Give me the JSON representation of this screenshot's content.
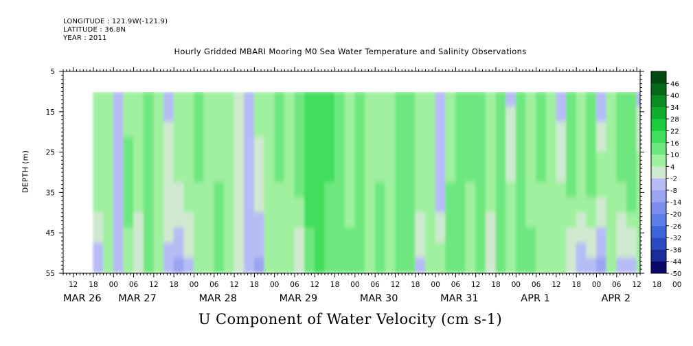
{
  "header": {
    "longitude": "LONGITUDE : 121.9W(-121.9)",
    "latitude": "LATITUDE : 36.8N",
    "year": "YEAR : 2011"
  },
  "chart_data": {
    "type": "heatmap",
    "title": "Hourly Gridded MBARI Mooring M0 Sea Water Temperature and Salinity Observations",
    "xlabel": "U Component of Water Velocity (cm s-1)",
    "ylabel": "DEPTH (m)",
    "x_start": "MAR 26 09:00",
    "x_end": "APR 2 13:00",
    "data_start": "MAR 26 18:00",
    "data_end": "APR 2 12:00",
    "ylim": [
      5,
      55
    ],
    "y_inverted": true,
    "data_depth_range": [
      10,
      55
    ],
    "y_ticks": [
      5,
      15,
      25,
      35,
      45,
      55
    ],
    "y_tick_labels": [
      "5",
      "15",
      "25",
      "35",
      "45",
      "55"
    ],
    "x_hour_labels": [
      "12",
      "18",
      "00",
      "06",
      "12",
      "18",
      "00",
      "06",
      "12",
      "18",
      "00",
      "06",
      "12",
      "18",
      "00",
      "06",
      "12",
      "18",
      "00",
      "06",
      "12",
      "18",
      "00",
      "06",
      "12",
      "18",
      "00",
      "06",
      "12",
      "18",
      "00",
      "06"
    ],
    "x_day_labels": [
      "MAR 26",
      "MAR 27",
      "MAR 28",
      "MAR 29",
      "MAR 30",
      "MAR 31",
      "APR  1",
      "APR  2"
    ],
    "colorbar": {
      "levels": [
        -50,
        -44,
        -38,
        -32,
        -26,
        -20,
        -14,
        -8,
        -2,
        4,
        10,
        16,
        22,
        28,
        34,
        40,
        46
      ],
      "colors": [
        "#080868",
        "#1a2c98",
        "#2a4cc0",
        "#3c66d8",
        "#5a7ee6",
        "#7c8eec",
        "#9aa4f0",
        "#b6bcf4",
        "#cfe9cf",
        "#9ff09f",
        "#6ee87e",
        "#3fde5c",
        "#1ccc3c",
        "#0fae2c",
        "#0a8c22",
        "#066a18",
        "#034a10"
      ]
    },
    "u_velocity_columns": [
      {
        "time": "MAR 26 18:00",
        "shallow": 8,
        "mid": 8,
        "deep": -6
      },
      {
        "time": "MAR 26 21:00",
        "shallow": 10,
        "mid": 8,
        "deep": 4
      },
      {
        "time": "MAR 27 00:00",
        "shallow": -4,
        "mid": -6,
        "deep": -8
      },
      {
        "time": "MAR 27 03:00",
        "shallow": 8,
        "mid": 12,
        "deep": 8
      },
      {
        "time": "MAR 27 06:00",
        "shallow": 10,
        "mid": 8,
        "deep": -2
      },
      {
        "time": "MAR 27 09:00",
        "shallow": 10,
        "mid": 12,
        "deep": 14
      },
      {
        "time": "MAR 27 12:00",
        "shallow": 8,
        "mid": 10,
        "deep": 4
      },
      {
        "time": "MAR 27 15:00",
        "shallow": -4,
        "mid": 2,
        "deep": -4
      },
      {
        "time": "MAR 27 18:00",
        "shallow": 8,
        "mid": 4,
        "deep": -10
      },
      {
        "time": "MAR 27 21:00",
        "shallow": 6,
        "mid": 8,
        "deep": -4
      },
      {
        "time": "MAR 28 00:00",
        "shallow": 12,
        "mid": 10,
        "deep": 4
      },
      {
        "time": "MAR 28 03:00",
        "shallow": 6,
        "mid": 8,
        "deep": 10
      },
      {
        "time": "MAR 28 06:00",
        "shallow": 8,
        "mid": 10,
        "deep": 12
      },
      {
        "time": "MAR 28 09:00",
        "shallow": 10,
        "mid": 8,
        "deep": 4
      },
      {
        "time": "MAR 28 12:00",
        "shallow": -2,
        "mid": 4,
        "deep": 2
      },
      {
        "time": "MAR 28 15:00",
        "shallow": -6,
        "mid": -4,
        "deep": -6
      },
      {
        "time": "MAR 28 18:00",
        "shallow": 6,
        "mid": 2,
        "deep": -10
      },
      {
        "time": "MAR 28 21:00",
        "shallow": 10,
        "mid": 8,
        "deep": 4
      },
      {
        "time": "MAR 29 00:00",
        "shallow": 12,
        "mid": 10,
        "deep": 8
      },
      {
        "time": "MAR 29 03:00",
        "shallow": 8,
        "mid": 10,
        "deep": 4
      },
      {
        "time": "MAR 29 06:00",
        "shallow": 14,
        "mid": 12,
        "deep": -2
      },
      {
        "time": "MAR 29 09:00",
        "shallow": 16,
        "mid": 18,
        "deep": 14
      },
      {
        "time": "MAR 29 12:00",
        "shallow": 16,
        "mid": 20,
        "deep": 16
      },
      {
        "time": "MAR 29 15:00",
        "shallow": 20,
        "mid": 16,
        "deep": 12
      },
      {
        "time": "MAR 29 18:00",
        "shallow": 16,
        "mid": 14,
        "deep": 10
      },
      {
        "time": "MAR 29 21:00",
        "shallow": 10,
        "mid": 8,
        "deep": 12
      },
      {
        "time": "MAR 30 00:00",
        "shallow": 12,
        "mid": 10,
        "deep": 14
      },
      {
        "time": "MAR 30 03:00",
        "shallow": 10,
        "mid": 6,
        "deep": 8
      },
      {
        "time": "MAR 30 06:00",
        "shallow": 8,
        "mid": 10,
        "deep": 12
      },
      {
        "time": "MAR 30 09:00",
        "shallow": 4,
        "mid": 8,
        "deep": 10
      },
      {
        "time": "MAR 30 12:00",
        "shallow": 14,
        "mid": 12,
        "deep": 10
      },
      {
        "time": "MAR 30 15:00",
        "shallow": 16,
        "mid": 14,
        "deep": 12
      },
      {
        "time": "MAR 30 18:00",
        "shallow": 10,
        "mid": 8,
        "deep": -4
      },
      {
        "time": "MAR 30 21:00",
        "shallow": 6,
        "mid": 8,
        "deep": 10
      },
      {
        "time": "MAR 31 00:00",
        "shallow": -4,
        "mid": -6,
        "deep": 8
      },
      {
        "time": "MAR 31 03:00",
        "shallow": 8,
        "mid": 10,
        "deep": 12
      },
      {
        "time": "MAR 31 06:00",
        "shallow": 10,
        "mid": 12,
        "deep": 10
      },
      {
        "time": "MAR 31 09:00",
        "shallow": 12,
        "mid": 10,
        "deep": 8
      },
      {
        "time": "MAR 31 12:00",
        "shallow": 14,
        "mid": 12,
        "deep": 10
      },
      {
        "time": "MAR 31 15:00",
        "shallow": 10,
        "mid": 8,
        "deep": -2
      },
      {
        "time": "MAR 31 18:00",
        "shallow": 12,
        "mid": 10,
        "deep": 14
      },
      {
        "time": "MAR 31 21:00",
        "shallow": -4,
        "mid": 4,
        "deep": 6
      },
      {
        "time": "APR 1 00:00",
        "shallow": 10,
        "mid": 12,
        "deep": 10
      },
      {
        "time": "APR 1 03:00",
        "shallow": 6,
        "mid": 8,
        "deep": 12
      },
      {
        "time": "APR 1 06:00",
        "shallow": 12,
        "mid": 10,
        "deep": 8
      },
      {
        "time": "APR 1 09:00",
        "shallow": 8,
        "mid": 6,
        "deep": 4
      },
      {
        "time": "APR 1 12:00",
        "shallow": -6,
        "mid": 4,
        "deep": 10
      },
      {
        "time": "APR 1 15:00",
        "shallow": 10,
        "mid": 12,
        "deep": -2
      },
      {
        "time": "APR 1 18:00",
        "shallow": 4,
        "mid": 8,
        "deep": -6
      },
      {
        "time": "APR 1 21:00",
        "shallow": 10,
        "mid": 12,
        "deep": -4
      },
      {
        "time": "APR 2 00:00",
        "shallow": -6,
        "mid": 8,
        "deep": -10
      },
      {
        "time": "APR 2 03:00",
        "shallow": 8,
        "mid": 6,
        "deep": 4
      },
      {
        "time": "APR 2 06:00",
        "shallow": 14,
        "mid": 10,
        "deep": -6
      },
      {
        "time": "APR 2 09:00",
        "shallow": 10,
        "mid": 16,
        "deep": -8
      },
      {
        "time": "APR 2 12:00",
        "shallow": -4,
        "mid": 8,
        "deep": 4
      }
    ]
  }
}
